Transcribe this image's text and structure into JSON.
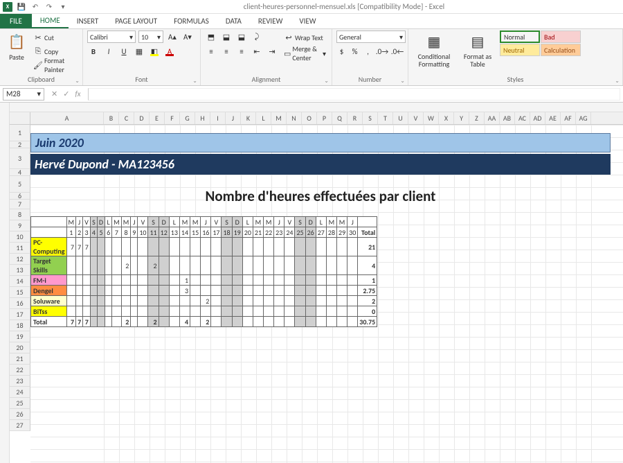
{
  "app": {
    "title": "client-heures-personnel-mensuel.xls [Compatibility Mode] - Excel"
  },
  "tabs": {
    "file": "FILE",
    "home": "HOME",
    "insert": "INSERT",
    "pageLayout": "PAGE LAYOUT",
    "formulas": "FORMULAS",
    "data": "DATA",
    "review": "REVIEW",
    "view": "VIEW"
  },
  "ribbon": {
    "clipboard": {
      "label": "Clipboard",
      "paste": "Paste",
      "cut": "Cut",
      "copy": "Copy",
      "painter": "Format Painter"
    },
    "font": {
      "label": "Font",
      "name": "Calibri",
      "size": "10"
    },
    "alignment": {
      "label": "Alignment",
      "wrap": "Wrap Text",
      "merge": "Merge & Center"
    },
    "number": {
      "label": "Number",
      "format": "General"
    },
    "styles": {
      "label": "Styles",
      "cond": "Conditional Formatting",
      "table": "Format as Table",
      "normal": "Normal",
      "bad": "Bad",
      "neutral": "Neutral",
      "calc": "Calculation",
      "colors": {
        "bad_bg": "#f8d0d0",
        "bad_fg": "#9c0006",
        "neutral_bg": "#ffeb9c",
        "neutral_fg": "#9c6500",
        "calc_bg": "#ffcc99",
        "calc_fg": "#954f1b"
      }
    }
  },
  "namebox": "M28",
  "fx": "",
  "sheet": {
    "columns": [
      "A",
      "B",
      "C",
      "D",
      "E",
      "F",
      "G",
      "H",
      "I",
      "J",
      "K",
      "L",
      "M",
      "N",
      "O",
      "P",
      "Q",
      "R",
      "S",
      "T",
      "U",
      "V",
      "W",
      "X",
      "Y",
      "Z",
      "AA",
      "AB",
      "AC",
      "AD",
      "AE",
      "AF",
      "AG"
    ],
    "col_A_width": 106,
    "other_col_width": 22,
    "rows": [
      1,
      2,
      3,
      4,
      5,
      6,
      7,
      8,
      9,
      10,
      11,
      12,
      13,
      14,
      15,
      16,
      17,
      18,
      19,
      20,
      21,
      22,
      23,
      24,
      25,
      26,
      27
    ],
    "row_heights": {
      "1": 24,
      "2": 10,
      "3": 30,
      "4": 10,
      "5": 24,
      "6": 10,
      "7": 14,
      "default": 16
    }
  },
  "content": {
    "month": "Juin 2020",
    "person": "Hervé Dupond -  MA123456",
    "title": "Nombre d'heures effectuées par client",
    "days_letters": [
      "M",
      "J",
      "V",
      "S",
      "D",
      "L",
      "M",
      "M",
      "J",
      "V",
      "S",
      "D",
      "L",
      "M",
      "M",
      "J",
      "V",
      "S",
      "D",
      "L",
      "M",
      "M",
      "J",
      "V",
      "S",
      "D",
      "L",
      "M",
      "M",
      "J"
    ],
    "days_numbers": [
      1,
      2,
      3,
      4,
      5,
      6,
      7,
      8,
      9,
      10,
      11,
      12,
      13,
      14,
      15,
      16,
      17,
      18,
      19,
      20,
      21,
      22,
      23,
      24,
      25,
      26,
      27,
      28,
      29,
      30
    ],
    "weekend_cols": [
      3,
      4,
      10,
      11,
      17,
      18,
      24,
      25
    ],
    "total_label": "Total",
    "clients": [
      {
        "name": "PC-Computing",
        "color": "color-yellow",
        "vals": {
          "0": "7",
          "1": "7",
          "2": "7"
        },
        "total": "21"
      },
      {
        "name": "Target Skills",
        "color": "color-green",
        "vals": {
          "7": "2",
          "10": "2"
        },
        "total": "4"
      },
      {
        "name": "FM-i",
        "color": "color-pink",
        "vals": {
          "13": "1"
        },
        "total": "1"
      },
      {
        "name": "Dengel",
        "color": "color-orange",
        "vals": {
          "13": "3"
        },
        "total": "2.75"
      },
      {
        "name": "Soluware",
        "color": "color-lyellow",
        "vals": {
          "15": "2"
        },
        "total": "2"
      },
      {
        "name": "BiTss",
        "color": "color-yellow",
        "vals": {},
        "total": "0"
      }
    ],
    "totals_row": {
      "label": "Total",
      "vals": {
        "0": "7",
        "1": "7",
        "2": "7",
        "7": "2",
        "10": "2",
        "13": "4",
        "15": "2"
      },
      "total": "30.75"
    }
  }
}
